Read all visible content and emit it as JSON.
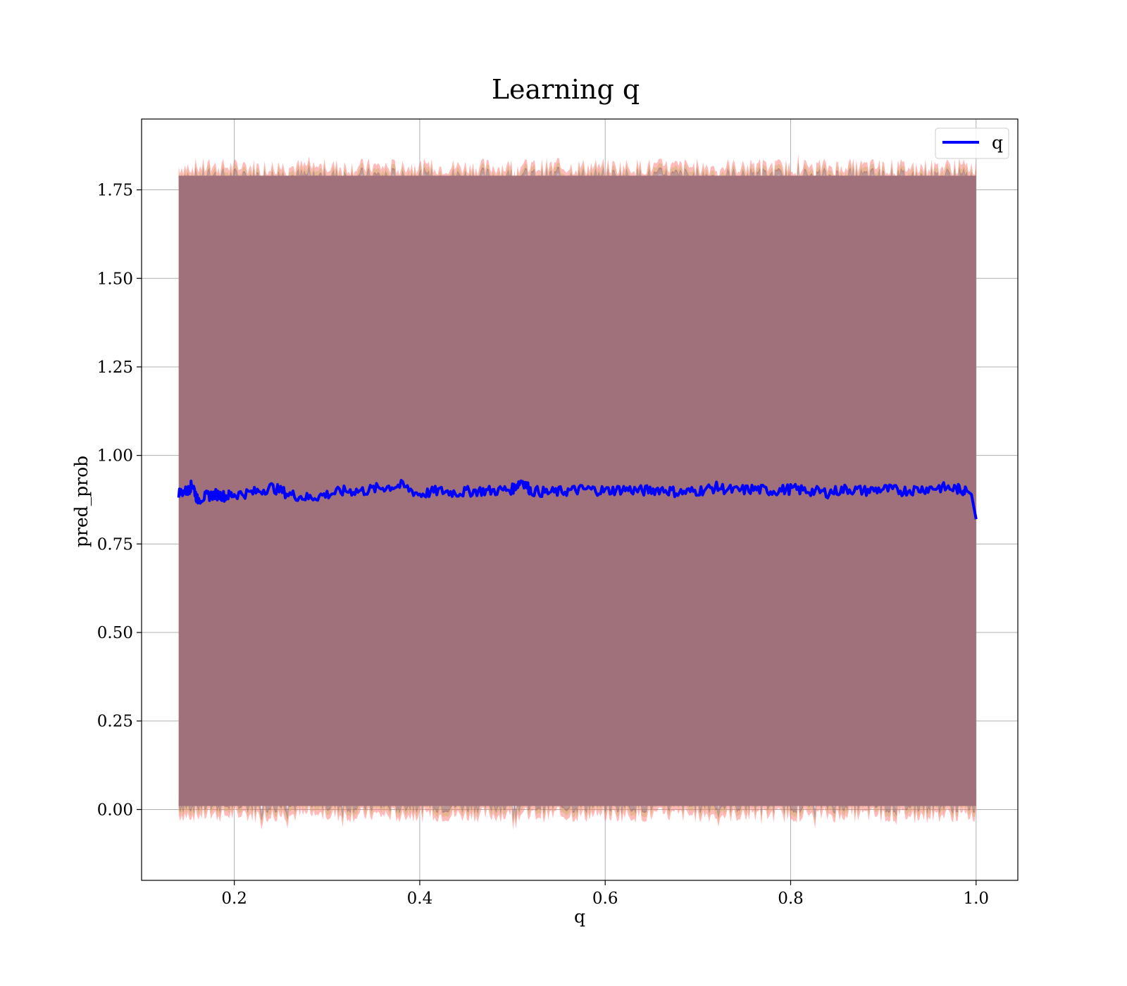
{
  "chart_data": {
    "type": "line",
    "title": "Learning q",
    "xlabel": "q",
    "ylabel": "pred_prob",
    "xlim": [
      0.1,
      1.045
    ],
    "ylim": [
      -0.2,
      1.95
    ],
    "xticks": [
      0.2,
      0.4,
      0.6,
      0.8,
      1.0
    ],
    "xtick_labels": [
      "0.2",
      "0.4",
      "0.6",
      "0.8",
      "1.0"
    ],
    "yticks": [
      0.0,
      0.25,
      0.5,
      0.75,
      1.0,
      1.25,
      1.5,
      1.75
    ],
    "ytick_labels": [
      "0.00",
      "0.25",
      "0.50",
      "0.75",
      "1.00",
      "1.25",
      "1.50",
      "1.75"
    ],
    "grid": true,
    "legend": {
      "position": "top-right",
      "entries": [
        {
          "label": "q",
          "color": "#0000ff"
        }
      ]
    },
    "series": [
      {
        "name": "q",
        "color": "#0000ff",
        "x": [
          0.14,
          0.15,
          0.155,
          0.16,
          0.17,
          0.18,
          0.19,
          0.2,
          0.22,
          0.24,
          0.26,
          0.28,
          0.3,
          0.32,
          0.34,
          0.36,
          0.38,
          0.4,
          0.42,
          0.44,
          0.46,
          0.48,
          0.5,
          0.51,
          0.52,
          0.54,
          0.56,
          0.58,
          0.6,
          0.62,
          0.64,
          0.66,
          0.68,
          0.7,
          0.72,
          0.74,
          0.76,
          0.78,
          0.8,
          0.82,
          0.84,
          0.86,
          0.88,
          0.9,
          0.92,
          0.94,
          0.96,
          0.98,
          0.99,
          0.995,
          1.0
        ],
        "y": [
          0.895,
          0.9,
          0.92,
          0.875,
          0.885,
          0.89,
          0.885,
          0.89,
          0.895,
          0.91,
          0.89,
          0.88,
          0.89,
          0.9,
          0.9,
          0.91,
          0.915,
          0.89,
          0.9,
          0.895,
          0.9,
          0.9,
          0.905,
          0.93,
          0.9,
          0.895,
          0.9,
          0.905,
          0.9,
          0.905,
          0.9,
          0.905,
          0.895,
          0.9,
          0.91,
          0.9,
          0.905,
          0.9,
          0.905,
          0.9,
          0.895,
          0.905,
          0.9,
          0.905,
          0.9,
          0.905,
          0.91,
          0.905,
          0.9,
          0.89,
          0.82
        ]
      }
    ],
    "band": {
      "x_start": 0.14,
      "x_end": 1.0,
      "lower": 0.01,
      "upper": 1.79,
      "fill": "#a0717a",
      "edge_colors": [
        "#ff6666",
        "#c8b060",
        "#8a4a6a"
      ]
    }
  }
}
